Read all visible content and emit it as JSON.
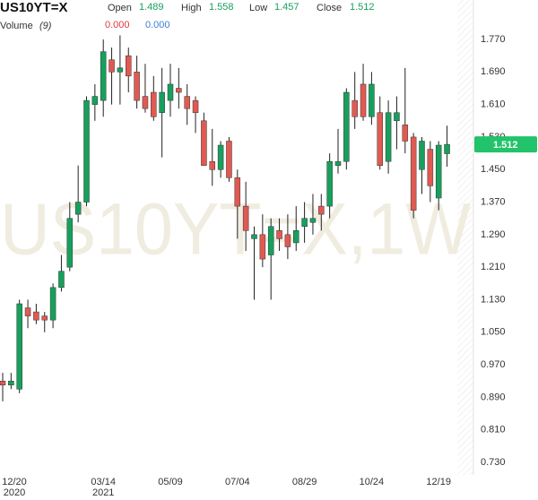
{
  "chart_data": {
    "type": "candlestick",
    "title": "US10YT=X",
    "watermark": "US10YT=X,1W",
    "legend_labels": [
      "Open",
      "High",
      "Low",
      "Close"
    ],
    "last_index": 53,
    "volume_label": "Volume",
    "volume_period": "(9)",
    "volume_values": [
      0,
      0
    ],
    "volume_value_labels": [
      "0.000",
      "0.000"
    ],
    "volume_colors": [
      "#e0383b",
      "#3d7fd6"
    ],
    "up_color": "#17a05d",
    "down_color": "#e05a52",
    "categories": [
      "12/20",
      null,
      null,
      null,
      null,
      null,
      null,
      null,
      null,
      null,
      null,
      null,
      "03/14",
      null,
      null,
      null,
      null,
      null,
      null,
      null,
      "05/09",
      null,
      null,
      null,
      null,
      null,
      null,
      null,
      "07/04",
      null,
      null,
      null,
      null,
      null,
      null,
      null,
      "08/29",
      null,
      null,
      null,
      null,
      null,
      null,
      null,
      "10/24",
      null,
      null,
      null,
      null,
      null,
      null,
      null,
      "12/19",
      null
    ],
    "year_labels": [
      "2020",
      null,
      null,
      null,
      null,
      null,
      null,
      null,
      null,
      null,
      null,
      null,
      "2021",
      null,
      null,
      null,
      null,
      null,
      null,
      null,
      null,
      null,
      null,
      null,
      null,
      null,
      null,
      null,
      null,
      null,
      null,
      null,
      null,
      null,
      null,
      null,
      null,
      null,
      null,
      null,
      null,
      null,
      null,
      null,
      null,
      null,
      null,
      null,
      null,
      null,
      null,
      null,
      null,
      null
    ],
    "open": [
      0.93,
      0.92,
      0.91,
      1.11,
      1.1,
      1.09,
      1.08,
      1.16,
      1.21,
      1.34,
      1.37,
      1.61,
      1.62,
      1.72,
      1.69,
      1.73,
      1.69,
      1.63,
      1.64,
      1.59,
      1.62,
      1.65,
      1.63,
      1.62,
      1.57,
      1.47,
      1.45,
      1.52,
      1.43,
      1.36,
      1.28,
      1.29,
      1.24,
      1.3,
      1.29,
      1.27,
      1.31,
      1.32,
      1.36,
      1.36,
      1.46,
      1.47,
      1.62,
      1.66,
      1.58,
      1.59,
      1.47,
      1.57,
      1.56,
      1.53,
      1.45,
      1.5,
      1.38,
      1.489
    ],
    "high": [
      0.95,
      0.95,
      1.13,
      1.13,
      1.12,
      1.1,
      1.17,
      1.24,
      1.37,
      1.46,
      1.63,
      1.66,
      1.77,
      1.75,
      1.78,
      1.75,
      1.73,
      1.71,
      1.68,
      1.7,
      1.71,
      1.7,
      1.66,
      1.63,
      1.59,
      1.55,
      1.52,
      1.53,
      1.45,
      1.42,
      1.31,
      1.34,
      1.33,
      1.33,
      1.34,
      1.36,
      1.37,
      1.39,
      1.39,
      1.49,
      1.55,
      1.65,
      1.69,
      1.71,
      1.69,
      1.63,
      1.62,
      1.63,
      1.7,
      1.54,
      1.53,
      1.52,
      1.52,
      1.558
    ],
    "low": [
      0.88,
      0.91,
      0.9,
      1.06,
      1.07,
      1.05,
      1.06,
      1.15,
      1.2,
      1.32,
      1.36,
      1.57,
      1.58,
      1.61,
      1.61,
      1.64,
      1.6,
      1.59,
      1.57,
      1.48,
      1.58,
      1.6,
      1.56,
      1.54,
      1.46,
      1.41,
      1.43,
      1.42,
      1.28,
      1.25,
      1.13,
      1.21,
      1.13,
      1.25,
      1.23,
      1.25,
      1.27,
      1.29,
      1.3,
      1.33,
      1.44,
      1.45,
      1.55,
      1.57,
      1.56,
      1.45,
      1.44,
      1.5,
      1.49,
      1.33,
      1.39,
      1.37,
      1.35,
      1.457
    ],
    "close": [
      0.92,
      0.93,
      1.12,
      1.09,
      1.08,
      1.08,
      1.16,
      1.2,
      1.33,
      1.37,
      1.62,
      1.63,
      1.74,
      1.69,
      1.7,
      1.68,
      1.62,
      1.6,
      1.58,
      1.64,
      1.66,
      1.64,
      1.6,
      1.59,
      1.46,
      1.45,
      1.51,
      1.43,
      1.36,
      1.3,
      1.29,
      1.23,
      1.31,
      1.28,
      1.26,
      1.3,
      1.33,
      1.33,
      1.34,
      1.47,
      1.47,
      1.64,
      1.58,
      1.58,
      1.66,
      1.46,
      1.59,
      1.59,
      1.52,
      1.35,
      1.52,
      1.41,
      1.51,
      1.512
    ],
    "ylim": [
      0.7,
      1.83
    ],
    "yticks": [
      {
        "value": 0.73,
        "label": "0.730"
      },
      {
        "value": 0.81,
        "label": "0.810"
      },
      {
        "value": 0.89,
        "label": "0.890"
      },
      {
        "value": 0.97,
        "label": "0.970"
      },
      {
        "value": 1.05,
        "label": "1.050"
      },
      {
        "value": 1.13,
        "label": "1.130"
      },
      {
        "value": 1.21,
        "label": "1.210"
      },
      {
        "value": 1.29,
        "label": "1.290"
      },
      {
        "value": 1.37,
        "label": "1.370"
      },
      {
        "value": 1.45,
        "label": "1.450"
      },
      {
        "value": 1.53,
        "label": "1.530"
      },
      {
        "value": 1.61,
        "label": "1.610"
      },
      {
        "value": 1.69,
        "label": "1.690"
      },
      {
        "value": 1.77,
        "label": "1.770"
      }
    ]
  }
}
